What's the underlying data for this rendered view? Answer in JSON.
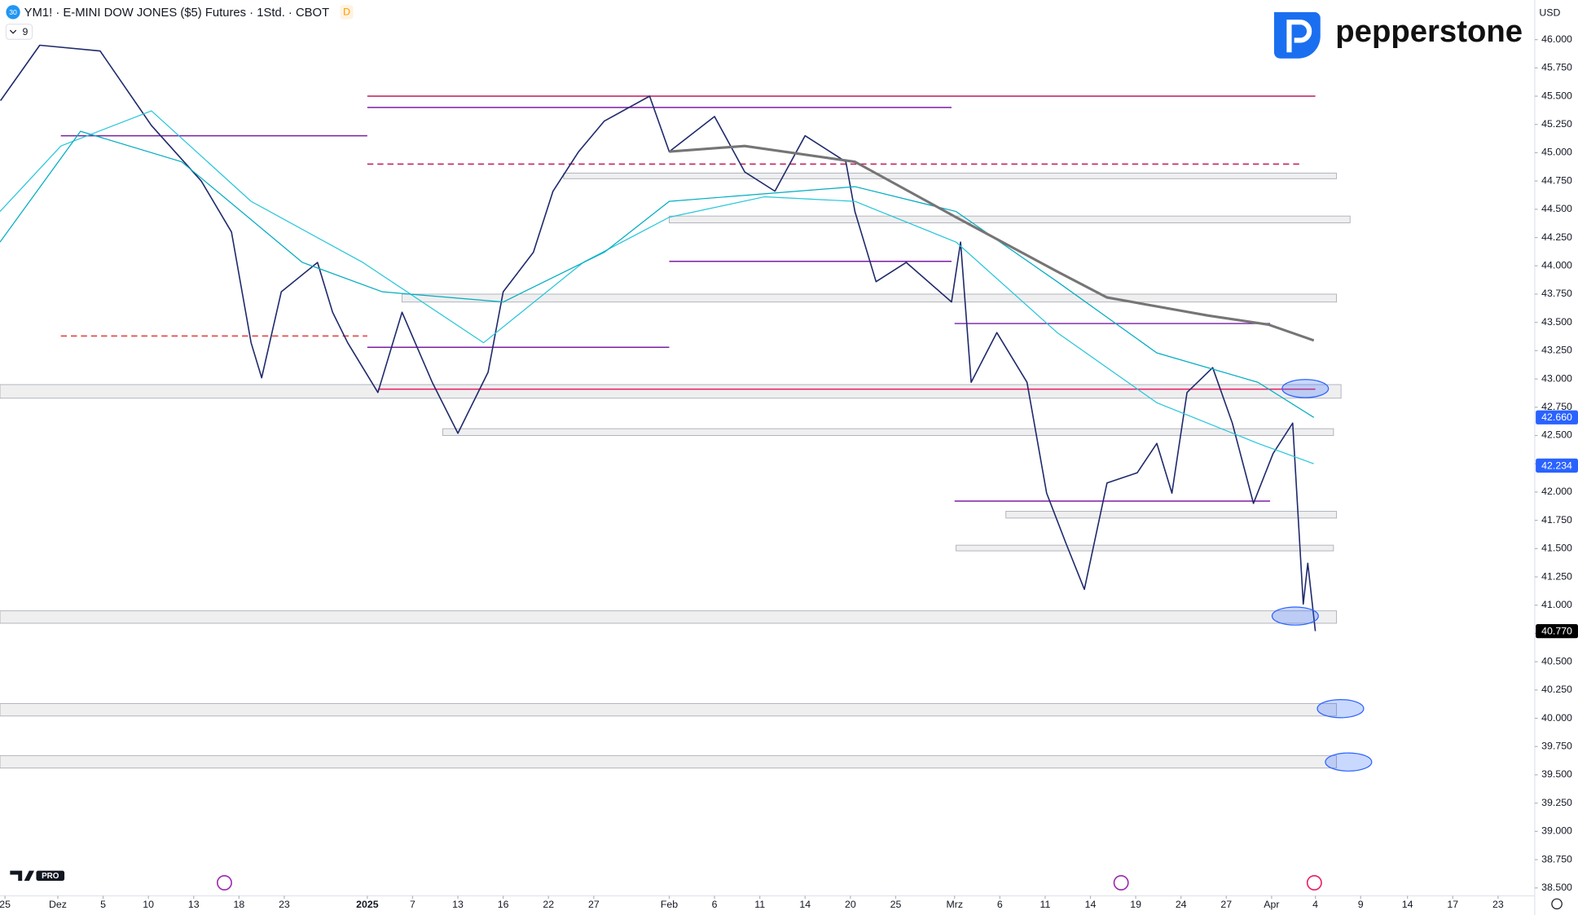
{
  "chart_data": {
    "type": "line",
    "title": "YM1! · E-MINI DOW JONES ($5) Futures · 1Std. · CBOT",
    "symbol_icon": "30",
    "badge": "D",
    "indicator_count": "9",
    "currency": "USD",
    "brand": "pepperstone",
    "tv_badge": "PRO",
    "xlim": [
      -0.33,
      101.33
    ],
    "xticks": [
      {
        "value": 0,
        "label": "25"
      },
      {
        "value": 3.5,
        "label": "Dez"
      },
      {
        "value": 6.5,
        "label": "5"
      },
      {
        "value": 9.5,
        "label": "10"
      },
      {
        "value": 12.5,
        "label": "13"
      },
      {
        "value": 15.5,
        "label": "18"
      },
      {
        "value": 18.5,
        "label": "23"
      },
      {
        "value": 24,
        "label": "2025"
      },
      {
        "value": 27,
        "label": "7"
      },
      {
        "value": 30,
        "label": "13"
      },
      {
        "value": 33,
        "label": "16"
      },
      {
        "value": 36,
        "label": "22"
      },
      {
        "value": 39,
        "label": "27"
      },
      {
        "value": 44,
        "label": "Feb"
      },
      {
        "value": 47,
        "label": "6"
      },
      {
        "value": 50,
        "label": "11"
      },
      {
        "value": 53,
        "label": "14"
      },
      {
        "value": 56,
        "label": "20"
      },
      {
        "value": 59,
        "label": "25"
      },
      {
        "value": 62.9,
        "label": "Mrz"
      },
      {
        "value": 65.9,
        "label": "6"
      },
      {
        "value": 68.9,
        "label": "11"
      },
      {
        "value": 71.9,
        "label": "14"
      },
      {
        "value": 74.9,
        "label": "19"
      },
      {
        "value": 77.9,
        "label": "24"
      },
      {
        "value": 80.9,
        "label": "27"
      },
      {
        "value": 83.9,
        "label": "Apr"
      },
      {
        "value": 86.8,
        "label": "4"
      },
      {
        "value": 89.8,
        "label": "9"
      },
      {
        "value": 92.9,
        "label": "14"
      },
      {
        "value": 95.9,
        "label": "17"
      },
      {
        "value": 98.9,
        "label": "23"
      }
    ],
    "ylim": [
      38430,
      46350
    ],
    "yticks": [
      {
        "value": 38500,
        "label": "38.500"
      },
      {
        "value": 38750,
        "label": "38.750"
      },
      {
        "value": 39000,
        "label": "39.000"
      },
      {
        "value": 39250,
        "label": "39.250"
      },
      {
        "value": 39500,
        "label": "39.500"
      },
      {
        "value": 39750,
        "label": "39.750"
      },
      {
        "value": 40000,
        "label": "40.000"
      },
      {
        "value": 40250,
        "label": "40.250"
      },
      {
        "value": 40500,
        "label": "40.500"
      },
      {
        "value": 40750,
        "label": "40.750"
      },
      {
        "value": 41000,
        "label": "41.000"
      },
      {
        "value": 41250,
        "label": "41.250"
      },
      {
        "value": 41500,
        "label": "41.500"
      },
      {
        "value": 41750,
        "label": "41.750"
      },
      {
        "value": 42000,
        "label": "42.000"
      },
      {
        "value": 42250,
        "label": "42.250"
      },
      {
        "value": 42500,
        "label": "42.500"
      },
      {
        "value": 42750,
        "label": "42.750"
      },
      {
        "value": 43000,
        "label": "43.000"
      },
      {
        "value": 43250,
        "label": "43.250"
      },
      {
        "value": 43500,
        "label": "43.500"
      },
      {
        "value": 43750,
        "label": "43.750"
      },
      {
        "value": 44000,
        "label": "44.000"
      },
      {
        "value": 44250,
        "label": "44.250"
      },
      {
        "value": 44500,
        "label": "44.500"
      },
      {
        "value": 44750,
        "label": "44.750"
      },
      {
        "value": 45000,
        "label": "45.000"
      },
      {
        "value": 45250,
        "label": "45.250"
      },
      {
        "value": 45500,
        "label": "45.500"
      },
      {
        "value": 45750,
        "label": "45.750"
      },
      {
        "value": 46000,
        "label": "46.000"
      }
    ],
    "zones": [
      {
        "from": -0.33,
        "to": 88.5,
        "low": 42830,
        "high": 42950
      },
      {
        "from": -0.33,
        "to": 88.2,
        "low": 40840,
        "high": 40950
      },
      {
        "from": -0.33,
        "to": 88.2,
        "low": 40020,
        "high": 40130
      },
      {
        "from": -0.33,
        "to": 88.2,
        "low": 39560,
        "high": 39670
      },
      {
        "from": 37,
        "to": 88.2,
        "low": 44770,
        "high": 44820
      },
      {
        "from": 44,
        "to": 89.1,
        "low": 44380,
        "high": 44440
      },
      {
        "from": 26.3,
        "to": 88.2,
        "low": 43680,
        "high": 43750
      },
      {
        "from": 29,
        "to": 88,
        "low": 42500,
        "high": 42560
      },
      {
        "from": 66.3,
        "to": 88.2,
        "low": 41770,
        "high": 41830
      },
      {
        "from": 63,
        "to": 88,
        "low": 41480,
        "high": 41530
      }
    ],
    "levels": [
      {
        "value": 45500,
        "from": 24,
        "to": 86.8,
        "color": "#c2185b",
        "dash": false
      },
      {
        "value": 45400,
        "from": 24,
        "to": 62.7,
        "color": "#7b1fa2",
        "dash": false
      },
      {
        "value": 44900,
        "from": 24,
        "to": 86,
        "color": "#c2185b",
        "dash": true
      },
      {
        "value": 45150,
        "from": 3.7,
        "to": 24,
        "color": "#7b1fa2",
        "dash": false
      },
      {
        "value": 43280,
        "from": 24,
        "to": 44,
        "color": "#7b1fa2",
        "dash": false
      },
      {
        "value": 44040,
        "from": 44,
        "to": 62.7,
        "color": "#7b1fa2",
        "dash": false
      },
      {
        "value": 43490,
        "from": 62.9,
        "to": 83.8,
        "color": "#7b1fa2",
        "dash": false
      },
      {
        "value": 41920,
        "from": 62.9,
        "to": 83.8,
        "color": "#7b1fa2",
        "dash": false
      },
      {
        "value": 42910,
        "from": 24.7,
        "to": 86.8,
        "color": "#e91e63",
        "dash": false
      },
      {
        "value": 43380,
        "from": 3.7,
        "to": 24,
        "color": "#e53935",
        "dash": true
      }
    ],
    "series": [
      {
        "color": "#1f2a6b",
        "width": 1.3,
        "x": [
          -0.3,
          2.3,
          6.3,
          9.7,
          13,
          15,
          16.3,
          17,
          18.3,
          20.7,
          21.7,
          22.7,
          24.7,
          26.3,
          28.3,
          30,
          32,
          33,
          35,
          36.3,
          38,
          39.7,
          42.7,
          44,
          47,
          49,
          51,
          53,
          55.7,
          56.3,
          57.7,
          59.7,
          62.7,
          63.3,
          64,
          65.7,
          67.7,
          69,
          70.3,
          71.5,
          73,
          75,
          76.3,
          77.3,
          78.3,
          80,
          81.3,
          82.7,
          84,
          85.3,
          86,
          86.3,
          86.8
        ],
        "values": [
          45460,
          45950,
          45900,
          45240,
          44750,
          44300,
          43320,
          43010,
          43770,
          44030,
          43590,
          43320,
          42880,
          43590,
          42970,
          42520,
          43060,
          43770,
          44120,
          44660,
          45010,
          45280,
          45500,
          45010,
          45320,
          44830,
          44660,
          45150,
          44920,
          44480,
          43860,
          44030,
          43680,
          44210,
          42970,
          43410,
          42970,
          41990,
          41540,
          41140,
          42080,
          42170,
          42430,
          41990,
          42880,
          43100,
          42610,
          41900,
          42340,
          42610,
          41010,
          41370,
          40770
        ]
      },
      {
        "color": "#26c6da",
        "width": 1,
        "x": [
          -0.33,
          3.7,
          9.7,
          16.3,
          23.7,
          31.7,
          38.3,
          44,
          50.3,
          56.3,
          63,
          69.7,
          76.3,
          83,
          86.7
        ],
        "values": [
          44480,
          45060,
          45370,
          44570,
          44030,
          43320,
          44030,
          44430,
          44610,
          44570,
          44210,
          43410,
          42790,
          42430,
          42250
        ]
      },
      {
        "color": "#00acc1",
        "width": 1,
        "x": [
          -0.33,
          5,
          11.7,
          19.7,
          25,
          33,
          39.7,
          44,
          56.3,
          63,
          69.7,
          76.3,
          83,
          86.7
        ],
        "values": [
          44210,
          45190,
          44920,
          44030,
          43770,
          43680,
          44120,
          44570,
          44700,
          44480,
          43860,
          43230,
          42970,
          42660
        ]
      },
      {
        "color": "#757575",
        "width": 2.5,
        "x": [
          44,
          49,
          56.3,
          63,
          69.7,
          73,
          79.7,
          83.7,
          86.7
        ],
        "values": [
          45010,
          45060,
          44920,
          44430,
          43950,
          43720,
          43560,
          43480,
          43340
        ]
      }
    ],
    "price_labels": [
      {
        "value": 42660,
        "label": "42.660",
        "color": "#2962ff"
      },
      {
        "value": 42234,
        "label": "42.234",
        "color": "#2962ff"
      },
      {
        "value": 40770,
        "label": "40.770",
        "color": "#000000"
      }
    ]
  }
}
